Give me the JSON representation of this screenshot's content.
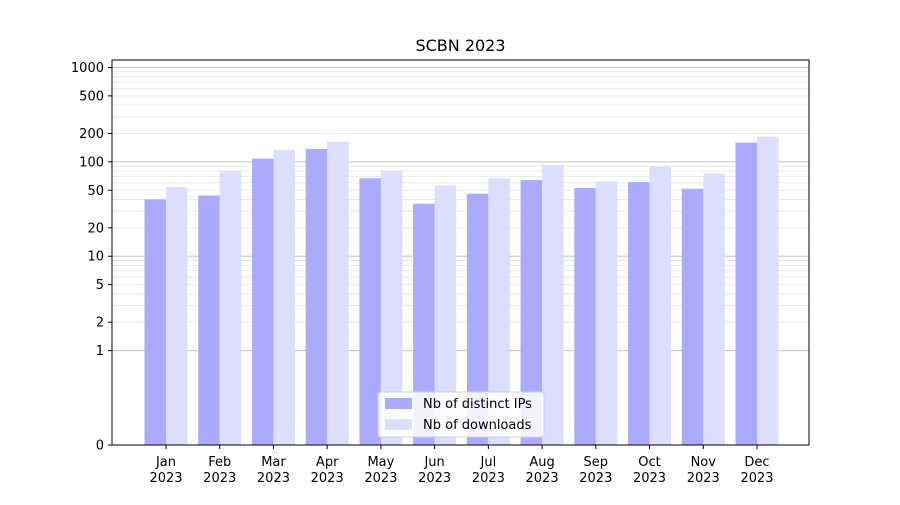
{
  "chart_data": {
    "type": "bar",
    "title": "SCBN 2023",
    "xlabel": "",
    "ylabel": "",
    "yscale": "symlog",
    "ylim": [
      0,
      1200
    ],
    "y_ticks": [
      0,
      1,
      2,
      5,
      10,
      20,
      50,
      100,
      200,
      500,
      1000
    ],
    "y_tick_labels": [
      "0",
      "1",
      "2",
      "5",
      "10",
      "20",
      "50",
      "100",
      "200",
      "500",
      "1000"
    ],
    "grid": "horizontal",
    "legend_position": "bottom-center",
    "categories": [
      {
        "month": "Jan",
        "year": "2023"
      },
      {
        "month": "Feb",
        "year": "2023"
      },
      {
        "month": "Mar",
        "year": "2023"
      },
      {
        "month": "Apr",
        "year": "2023"
      },
      {
        "month": "May",
        "year": "2023"
      },
      {
        "month": "Jun",
        "year": "2023"
      },
      {
        "month": "Jul",
        "year": "2023"
      },
      {
        "month": "Aug",
        "year": "2023"
      },
      {
        "month": "Sep",
        "year": "2023"
      },
      {
        "month": "Oct",
        "year": "2023"
      },
      {
        "month": "Nov",
        "year": "2023"
      },
      {
        "month": "Dec",
        "year": "2023"
      }
    ],
    "series": [
      {
        "name": "Nb of distinct IPs",
        "color": "#aaaaff",
        "values": [
          40,
          44,
          108,
          137,
          67,
          36,
          46,
          64,
          53,
          61,
          52,
          160
        ]
      },
      {
        "name": "Nb of downloads",
        "color": "#ddddff",
        "values": [
          54,
          81,
          134,
          163,
          81,
          56,
          67,
          93,
          62,
          89,
          75,
          185
        ]
      }
    ]
  }
}
